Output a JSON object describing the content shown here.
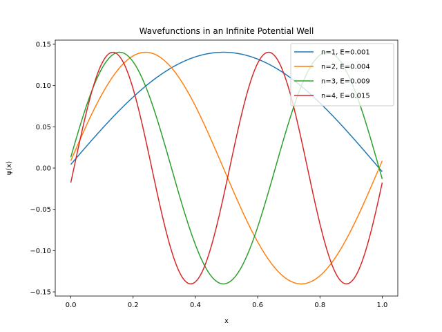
{
  "chart_data": {
    "type": "line",
    "title": "Wavefunctions in an Infinite Potential Well",
    "xlabel": "x",
    "ylabel": "ψ(x)",
    "xlim": [
      -0.05,
      1.05
    ],
    "ylim": [
      -0.155,
      0.155
    ],
    "xticks": [
      0.0,
      0.2,
      0.4,
      0.6,
      0.8,
      1.0
    ],
    "xtick_labels": [
      "0.0",
      "0.2",
      "0.4",
      "0.6",
      "0.8",
      "1.0"
    ],
    "yticks": [
      -0.15,
      -0.1,
      -0.05,
      0.0,
      0.05,
      0.1,
      0.15
    ],
    "ytick_labels": [
      "−0.15",
      "−0.10",
      "−0.05",
      "0.00",
      "0.05",
      "0.10",
      "0.15"
    ],
    "grid": false,
    "legend_position": "top-right",
    "x_range": [
      0.0,
      1.0
    ],
    "series": [
      {
        "name": "n=1, E=0.001",
        "color": "#1f77b4",
        "function": "0.1403*sin(pi*(1*x+0.01))"
      },
      {
        "name": "n=2, E=0.004",
        "color": "#ff7f0e",
        "function": "0.1403*sin(pi*(2*x+0.02))"
      },
      {
        "name": "n=3, E=0.009",
        "color": "#2ca02c",
        "function": "0.1403*sin(pi*(3*x+0.03))"
      },
      {
        "name": "n=4, E=0.015",
        "color": "#d62728",
        "function": "0.1403*sin(pi*(4*x-0.04))"
      }
    ],
    "amplitude": 0.1403,
    "phase_offsets": [
      0.01,
      0.02,
      0.03,
      -0.04
    ],
    "harmonics": [
      1,
      2,
      3,
      4
    ]
  }
}
